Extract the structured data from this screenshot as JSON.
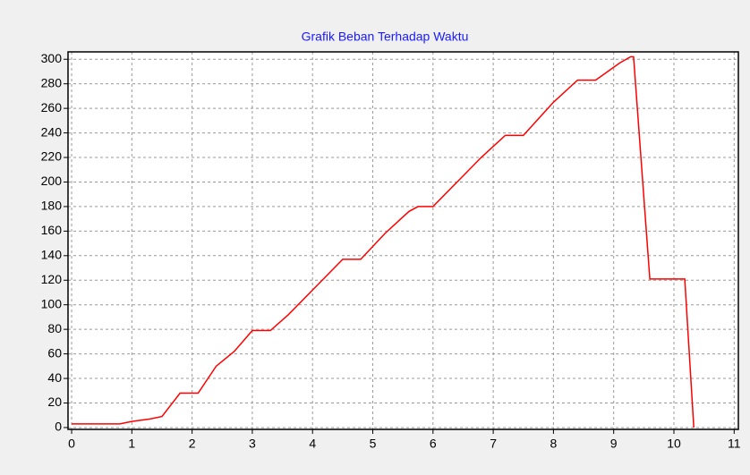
{
  "chart_data": {
    "type": "line",
    "title": "Grafik Beban Terhadap Waktu",
    "x": [
      0,
      0.8,
      1,
      1.3,
      1.5,
      1.8,
      2.1,
      2.4,
      2.7,
      3,
      3.3,
      3.6,
      4,
      4.5,
      4.8,
      5.2,
      5.6,
      5.75,
      6,
      6.4,
      6.8,
      7.2,
      7.5,
      8,
      8.4,
      8.7,
      9.1,
      9.28,
      9.33,
      9.6,
      10.18,
      10.33
    ],
    "values": [
      3,
      3,
      5,
      7,
      9,
      28,
      28,
      50,
      62,
      79,
      79,
      92,
      112,
      137,
      137,
      158,
      176,
      180,
      180,
      200,
      220,
      238,
      238,
      265,
      283,
      283,
      297,
      302,
      302,
      121,
      121,
      0
    ],
    "color": "#ff0000",
    "xlim": [
      -0.06,
      11.07
    ],
    "xticks": [
      0,
      1,
      2,
      3,
      4,
      5,
      6,
      7,
      8,
      9,
      10,
      11
    ],
    "ylim": [
      -1.5,
      306
    ],
    "yticks": [
      0,
      20,
      40,
      60,
      80,
      100,
      120,
      140,
      160,
      180,
      200,
      220,
      240,
      260,
      280,
      300
    ],
    "grid": true
  }
}
